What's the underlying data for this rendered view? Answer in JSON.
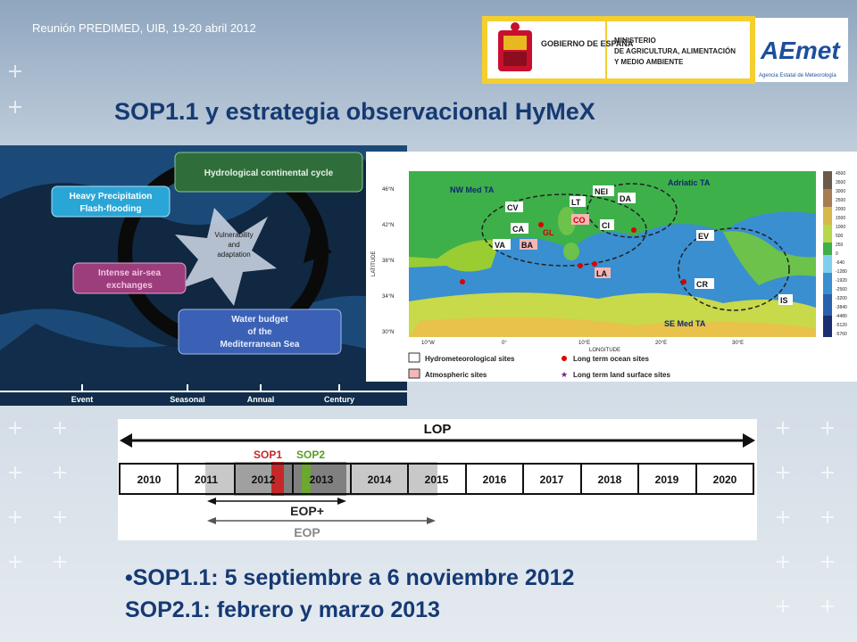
{
  "header": {
    "text": "Reunión PREDIMED, UIB, 19-20 abril 2012"
  },
  "logos": {
    "gobierno": "GOBIERNO DE ESPAÑA",
    "ministerio_l1": "MINISTERIO",
    "ministerio_l2": "DE AGRICULTURA, ALIMENTACIÓN",
    "ministerio_l3": "Y MEDIO AMBIENTE",
    "aemet": "AEmet",
    "aemet_sub": "Agencia Estatal de Meteorología"
  },
  "title": "SOP1.1 y estrategia observacional HyMeX",
  "cycle": {
    "box1": "Hydrological continental cycle",
    "box2_l1": "Heavy Precipitation",
    "box2_l2": "Flash-flooding",
    "center_l1": "Vulnerability",
    "center_l2": "and",
    "center_l3": "adaptation",
    "box3_l1": "Intense air-sea",
    "box3_l2": "exchanges",
    "box4_l1": "Water budget",
    "box4_l2": "of the",
    "box4_l3": "Mediterranean Sea",
    "scale": [
      "Event",
      "Seasonal",
      "Annual",
      "Century"
    ]
  },
  "map": {
    "regions": [
      "NW Med TA",
      "Adriatic TA",
      "SE Med TA"
    ],
    "sites": [
      "CV",
      "CA",
      "VA",
      "BA",
      "LT",
      "NEI",
      "DA",
      "CI",
      "CO",
      "GL",
      "LA",
      "EV",
      "CR",
      "IS"
    ],
    "lat_ticks": [
      "46°N",
      "42°N",
      "38°N",
      "34°N",
      "30°N"
    ],
    "lon_ticks": [
      "10°W",
      "0°",
      "10°E",
      "20°E",
      "30°E"
    ],
    "ylabel": "LATITUDE",
    "xlabel": "LONGITUDE",
    "colorbar": [
      "4500",
      "3500",
      "3000",
      "2500",
      "2000",
      "1500",
      "1000",
      "500",
      "250",
      "0",
      "-640",
      "-1280",
      "-1920",
      "-2560",
      "-3200",
      "-3840",
      "-4480",
      "-5120",
      "-5760"
    ],
    "legend": [
      "Hydrometeorological sites",
      "Atmospheric sites",
      "Long term ocean sites",
      "Long term land surface sites"
    ]
  },
  "timeline": {
    "lop": "LOP",
    "sop1": "SOP1",
    "sop2": "SOP2",
    "years": [
      "2010",
      "2011",
      "2012",
      "2013",
      "2014",
      "2015",
      "2016",
      "2017",
      "2018",
      "2019",
      "2020"
    ],
    "eop_plus": "EOP+",
    "eop": "EOP"
  },
  "bullets": [
    "•SOP1.1: 5 septiembre a 6 noviembre 2012",
    "SOP2.1: febrero y marzo 2013"
  ]
}
